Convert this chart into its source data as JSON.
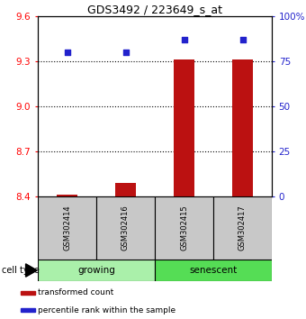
{
  "title": "GDS3492 / 223649_s_at",
  "samples": [
    "GSM302414",
    "GSM302416",
    "GSM302415",
    "GSM302417"
  ],
  "transformed_counts": [
    8.41,
    8.49,
    9.31,
    9.31
  ],
  "percentile_ranks": [
    80,
    80,
    87,
    87
  ],
  "ylim_left": [
    8.4,
    9.6
  ],
  "ylim_right": [
    0,
    100
  ],
  "yticks_left": [
    8.4,
    8.7,
    9.0,
    9.3,
    9.6
  ],
  "yticks_right": [
    0,
    25,
    50,
    75,
    100
  ],
  "ytick_labels_right": [
    "0",
    "25",
    "50",
    "75",
    "100%"
  ],
  "groups": [
    {
      "label": "growing",
      "indices": [
        0,
        1
      ],
      "color": "#aaf0aa"
    },
    {
      "label": "senescent",
      "indices": [
        2,
        3
      ],
      "color": "#55dd55"
    }
  ],
  "bar_color": "#BB1111",
  "dot_color": "#2222CC",
  "bar_bottom": 8.4,
  "sample_box_color": "#C8C8C8",
  "sample_box_border": "#000000",
  "legend_items": [
    {
      "color": "#BB1111",
      "label": "transformed count"
    },
    {
      "color": "#2222CC",
      "label": "percentile rank within the sample"
    }
  ]
}
